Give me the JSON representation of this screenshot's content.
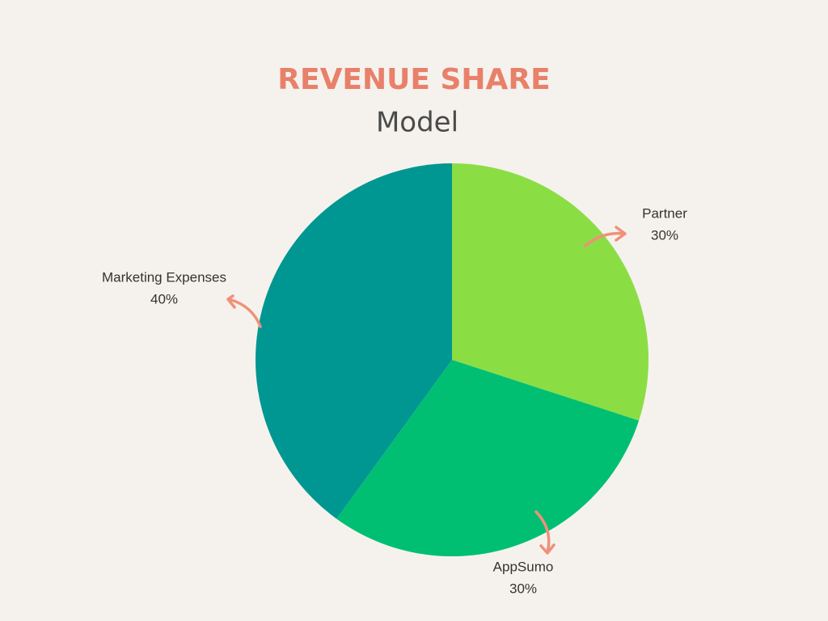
{
  "chart_data": {
    "type": "pie",
    "title": "REVENUE SHARE",
    "subtitle": "Model",
    "categories": [
      "Partner",
      "AppSumo",
      "Marketing Expenses"
    ],
    "values": [
      30,
      30,
      40
    ],
    "value_labels": [
      "30%",
      "30%",
      "40%"
    ],
    "colors": [
      "#8ade44",
      "#00bf72",
      "#009692"
    ]
  }
}
